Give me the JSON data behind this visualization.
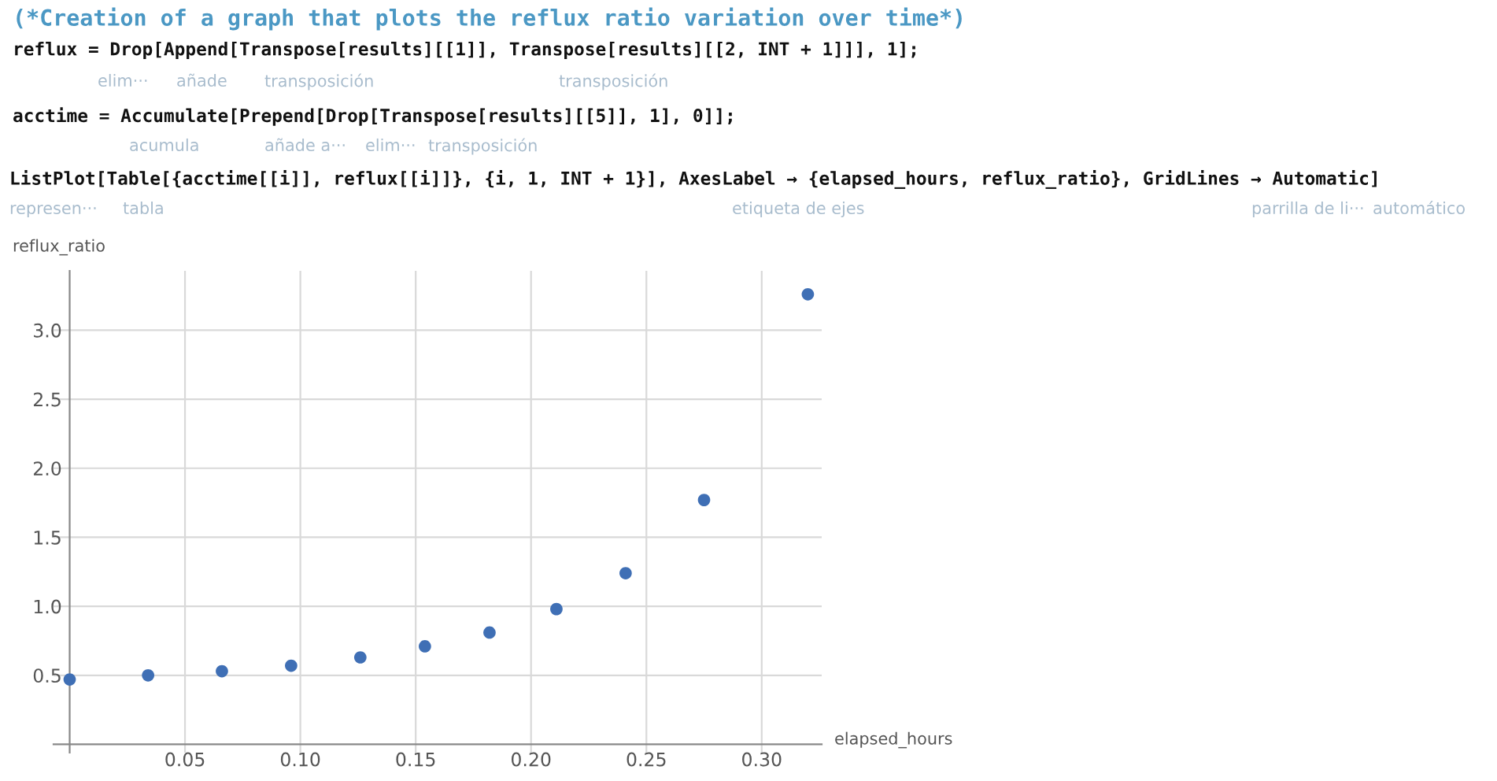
{
  "chart_data": {
    "type": "scatter",
    "title": "(*Creation of a graph that plots the reflux ratio variation over time*)",
    "xlabel": "elapsed_hours",
    "ylabel": "reflux_ratio",
    "x": [
      0,
      0.034,
      0.066,
      0.096,
      0.126,
      0.154,
      0.182,
      0.211,
      0.241,
      0.275,
      0.32
    ],
    "series": [
      {
        "color": "#3f6fb5",
        "values": [
          0.47,
          0.5,
          0.53,
          0.57,
          0.63,
          0.71,
          0.81,
          0.98,
          1.24,
          1.77,
          3.26
        ]
      }
    ],
    "xlim": [
      -0.007,
      0.326
    ],
    "ylim": [
      -0.06,
      3.43
    ],
    "xticks": [
      0.05,
      {
        "value": 0.1,
        "label": "0.10"
      },
      0.15,
      {
        "value": 0.2,
        "label": "0.20"
      },
      0.25,
      {
        "value": 0.3,
        "label": "0.30"
      }
    ],
    "yticks": [
      0.5,
      {
        "value": 1,
        "label": "1.0"
      },
      1.5,
      {
        "value": 2,
        "label": "2.0"
      },
      2.5,
      {
        "value": 3,
        "label": "3.0"
      }
    ],
    "grid": true,
    "marker": "circle",
    "legend": false,
    "annotations": [
      "reflux = Drop[Append[Transpose[results][[1]], Transpose[results][[2, INT + 1]]], 1];",
      "elim···",
      "añade",
      "transposición",
      "transposición",
      "acctime = Accumulate[Prepend[Drop[Transpose[results][[5]], 1], 0]];",
      "acumula",
      "añade a···",
      "elim···",
      "transposición",
      "ListPlot[Table[{acctime[[i]], reflux[[i]]}, {i, 1, INT + 1}], AxesLabel → {elapsed_hours, reflux_ratio}, GridLines → Automatic]",
      "represen···",
      "tabla",
      "etiqueta de ejes",
      "parrilla de li···",
      "automático"
    ]
  }
}
